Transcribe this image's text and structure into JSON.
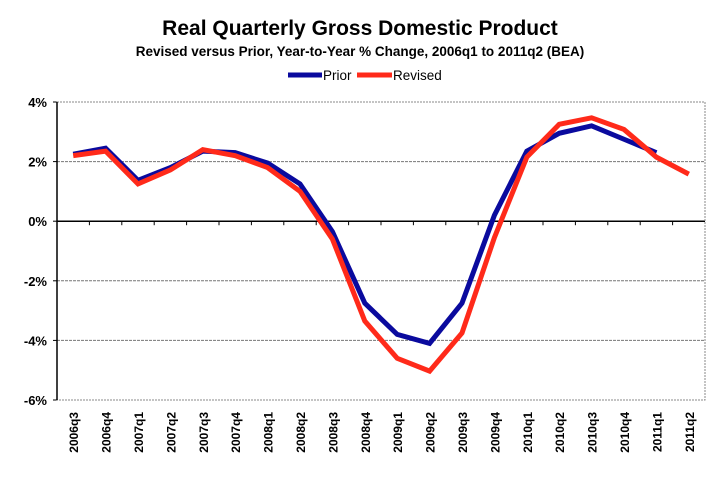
{
  "chart_data": {
    "type": "line",
    "title": "Real Quarterly Gross Domestic Product",
    "subtitle": "Revised versus Prior, Year-to-Year % Change, 2006q1 to 2011q2 (BEA)",
    "xlabel": "",
    "ylabel": "",
    "ylim": [
      -6,
      4
    ],
    "yticks": [
      4,
      2,
      0,
      -2,
      -4,
      -6
    ],
    "ytick_labels": [
      "4%",
      "2%",
      "0%",
      "-2%",
      "-4%",
      "-6%"
    ],
    "grid": true,
    "legend": {
      "placement": "top-center"
    },
    "categories": [
      "2006q3",
      "2006q4",
      "2007q1",
      "2007q2",
      "2007q3",
      "2007q4",
      "2008q1",
      "2008q2",
      "2008q3",
      "2008q4",
      "2009q1",
      "2009q2",
      "2009q3",
      "2009q4",
      "2010q1",
      "2010q2",
      "2010q3",
      "2010q4",
      "2011q1",
      "2011q2"
    ],
    "series": [
      {
        "name": "Prior",
        "color": "#0a0a9e",
        "values": [
          2.25,
          2.45,
          1.37,
          1.8,
          2.35,
          2.3,
          1.95,
          1.25,
          -0.35,
          -2.75,
          -3.8,
          -4.1,
          -2.75,
          0.2,
          2.35,
          2.95,
          3.2,
          2.75,
          2.3,
          null
        ]
      },
      {
        "name": "Revised",
        "color": "#ff2a1a",
        "values": [
          2.2,
          2.35,
          1.25,
          1.72,
          2.4,
          2.2,
          1.8,
          1.0,
          -0.6,
          -3.35,
          -4.6,
          -5.03,
          -3.75,
          -0.55,
          2.15,
          3.25,
          3.47,
          3.08,
          2.15,
          1.58
        ]
      }
    ]
  }
}
